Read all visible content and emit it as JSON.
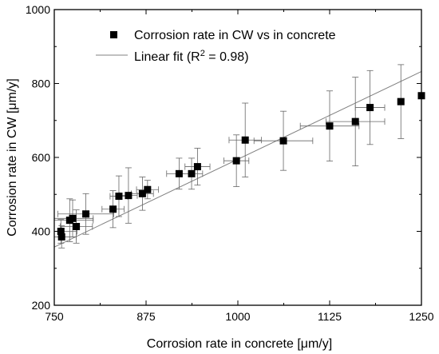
{
  "chart_data": {
    "type": "scatter",
    "xlabel": "Corrosion rate in concrete [μm/y]",
    "ylabel": "Corrosion rate in CW [μm/y]",
    "xlim": [
      750,
      1250
    ],
    "ylim": [
      200,
      1000
    ],
    "xticks": [
      750,
      875,
      1000,
      1125,
      1250
    ],
    "yticks": [
      200,
      400,
      600,
      800,
      1000
    ],
    "legend_position": "top-left",
    "series": [
      {
        "name": "Corrosion rate in CW vs in concrete",
        "marker": "square",
        "color": "#000000",
        "points": [
          {
            "x": 759,
            "y": 400,
            "xerr": 22,
            "yerr": 32
          },
          {
            "x": 760,
            "y": 385,
            "xerr": 20,
            "yerr": 30
          },
          {
            "x": 771,
            "y": 430,
            "xerr": 32,
            "yerr": 58
          },
          {
            "x": 775,
            "y": 435,
            "xerr": 28,
            "yerr": 50
          },
          {
            "x": 780,
            "y": 413,
            "xerr": 22,
            "yerr": 45
          },
          {
            "x": 793,
            "y": 447,
            "xerr": 38,
            "yerr": 55
          },
          {
            "x": 830,
            "y": 460,
            "xerr": 15,
            "yerr": 50
          },
          {
            "x": 838,
            "y": 495,
            "xerr": 12,
            "yerr": 55
          },
          {
            "x": 851,
            "y": 497,
            "xerr": 12,
            "yerr": 75
          },
          {
            "x": 870,
            "y": 502,
            "xerr": 15,
            "yerr": 45
          },
          {
            "x": 877,
            "y": 513,
            "xerr": 15,
            "yerr": 25
          },
          {
            "x": 920,
            "y": 556,
            "xerr": 17,
            "yerr": 42
          },
          {
            "x": 937,
            "y": 556,
            "xerr": 15,
            "yerr": 42
          },
          {
            "x": 945,
            "y": 575,
            "xerr": 17,
            "yerr": 50
          },
          {
            "x": 998,
            "y": 591,
            "xerr": 17,
            "yerr": 70
          },
          {
            "x": 1010,
            "y": 647,
            "xerr": 22,
            "yerr": 100
          },
          {
            "x": 1062,
            "y": 645,
            "xerr": 40,
            "yerr": 80
          },
          {
            "x": 1125,
            "y": 685,
            "xerr": 40,
            "yerr": 95
          },
          {
            "x": 1160,
            "y": 697,
            "xerr": 40,
            "yerr": 120
          },
          {
            "x": 1180,
            "y": 735,
            "xerr": 20,
            "yerr": 100
          },
          {
            "x": 1222,
            "y": 751,
            "xerr": 0,
            "yerr": 100
          },
          {
            "x": 1250,
            "y": 767,
            "xerr": 0,
            "yerr": 0
          }
        ]
      },
      {
        "name": "Linear fit (R² = 0.98)",
        "type": "line",
        "color": "#808080",
        "slope": 0.95,
        "intercept": -355
      }
    ]
  }
}
